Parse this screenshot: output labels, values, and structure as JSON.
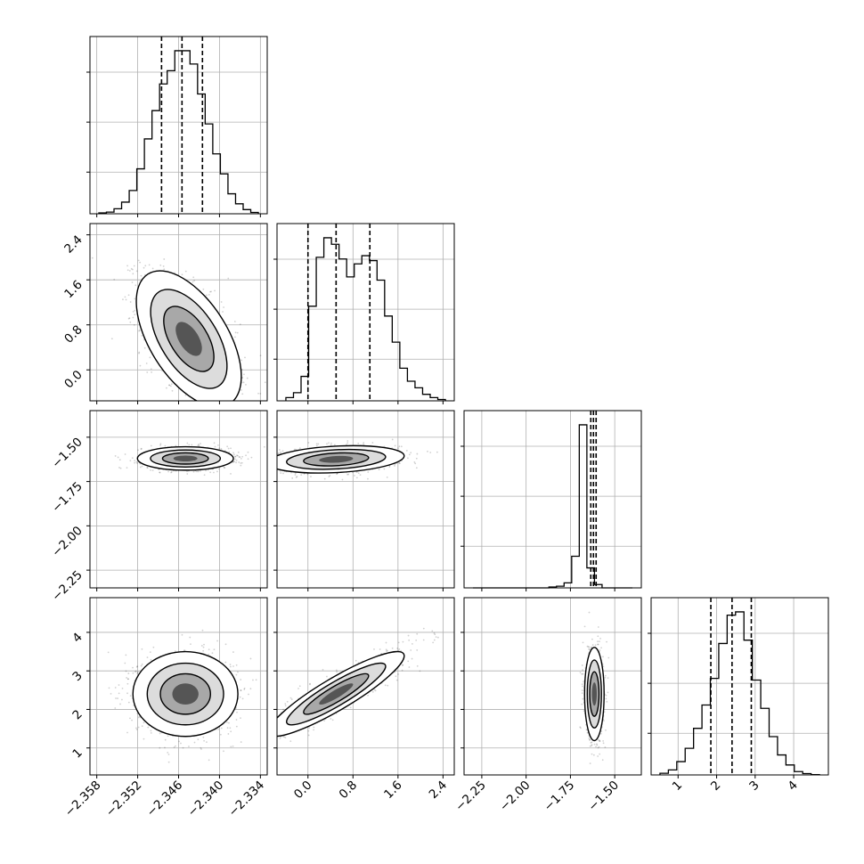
{
  "chart_data": {
    "type": "corner",
    "grid": true,
    "parameters": [
      {
        "range": [
          -2.359,
          -2.333
        ],
        "ticks": [
          -2.358,
          -2.352,
          -2.346,
          -2.34,
          -2.334
        ],
        "tick_labels": [
          "−2.358",
          "−2.352",
          "−2.346",
          "−2.340",
          "−2.334"
        ],
        "quantiles": [
          -2.3485,
          -2.3455,
          -2.3425
        ],
        "hist": [
          0.005,
          0.01,
          0.03,
          0.07,
          0.14,
          0.27,
          0.45,
          0.62,
          0.78,
          0.86,
          0.98,
          0.98,
          0.9,
          0.72,
          0.54,
          0.36,
          0.24,
          0.12,
          0.06,
          0.025,
          0.008
        ]
      },
      {
        "range": [
          -0.55,
          2.6
        ],
        "ticks": [
          0.0,
          0.8,
          1.6,
          2.4
        ],
        "tick_labels": [
          "0.0",
          "0.8",
          "1.6",
          "2.4"
        ],
        "quantiles": [
          0.0,
          0.5,
          1.1
        ],
        "hist": [
          0.02,
          0.05,
          0.15,
          0.58,
          0.88,
          1.0,
          0.96,
          0.87,
          0.76,
          0.84,
          0.89,
          0.86,
          0.74,
          0.52,
          0.36,
          0.2,
          0.12,
          0.08,
          0.04,
          0.02,
          0.008
        ]
      },
      {
        "range": [
          -2.35,
          -1.35
        ],
        "ticks": [
          -2.25,
          -2.0,
          -1.75,
          -1.5
        ],
        "tick_labels": [
          "−2.25",
          "−2.00",
          "−1.75",
          "−1.50"
        ],
        "quantiles": [
          -1.635,
          -1.62,
          -1.605
        ],
        "hist": [
          0.0,
          0.0,
          0.0,
          0.0,
          0.0,
          0.0,
          0.0,
          0.0,
          0.0,
          0.0,
          0.005,
          0.01,
          0.03,
          0.19,
          0.98,
          0.12,
          0.02,
          0.0,
          0.0,
          0.0,
          0.0
        ]
      },
      {
        "range": [
          0.3,
          4.9
        ],
        "ticks": [
          1,
          2,
          3,
          4
        ],
        "tick_labels": [
          "1",
          "2",
          "3",
          "4"
        ],
        "quantiles": [
          1.85,
          2.4,
          2.9
        ],
        "hist": [
          0.01,
          0.03,
          0.08,
          0.16,
          0.28,
          0.42,
          0.58,
          0.79,
          0.96,
          0.98,
          0.81,
          0.57,
          0.4,
          0.23,
          0.12,
          0.06,
          0.02,
          0.008,
          0.002
        ]
      }
    ],
    "pairs": [
      {
        "x": 0,
        "y": 1,
        "center": [
          -2.3445,
          0.55
        ],
        "sd": [
          0.0035,
          0.55
        ],
        "rho": -0.55
      },
      {
        "x": 0,
        "y": 2,
        "center": [
          -2.345,
          -1.62
        ],
        "sd": [
          0.0032,
          0.03
        ],
        "rho": 0.0
      },
      {
        "x": 1,
        "y": 2,
        "center": [
          0.5,
          -1.625
        ],
        "sd": [
          0.55,
          0.035
        ],
        "rho": 0.25
      },
      {
        "x": 0,
        "y": 3,
        "center": [
          -2.345,
          2.4
        ],
        "sd": [
          0.0035,
          0.5
        ],
        "rho": 0.0
      },
      {
        "x": 1,
        "y": 3,
        "center": [
          0.5,
          2.4
        ],
        "sd": [
          0.55,
          0.5
        ],
        "rho": 0.9
      },
      {
        "x": 2,
        "y": 3,
        "center": [
          -1.615,
          2.4
        ],
        "sd": [
          0.025,
          0.55
        ],
        "rho": 0.0
      }
    ]
  }
}
